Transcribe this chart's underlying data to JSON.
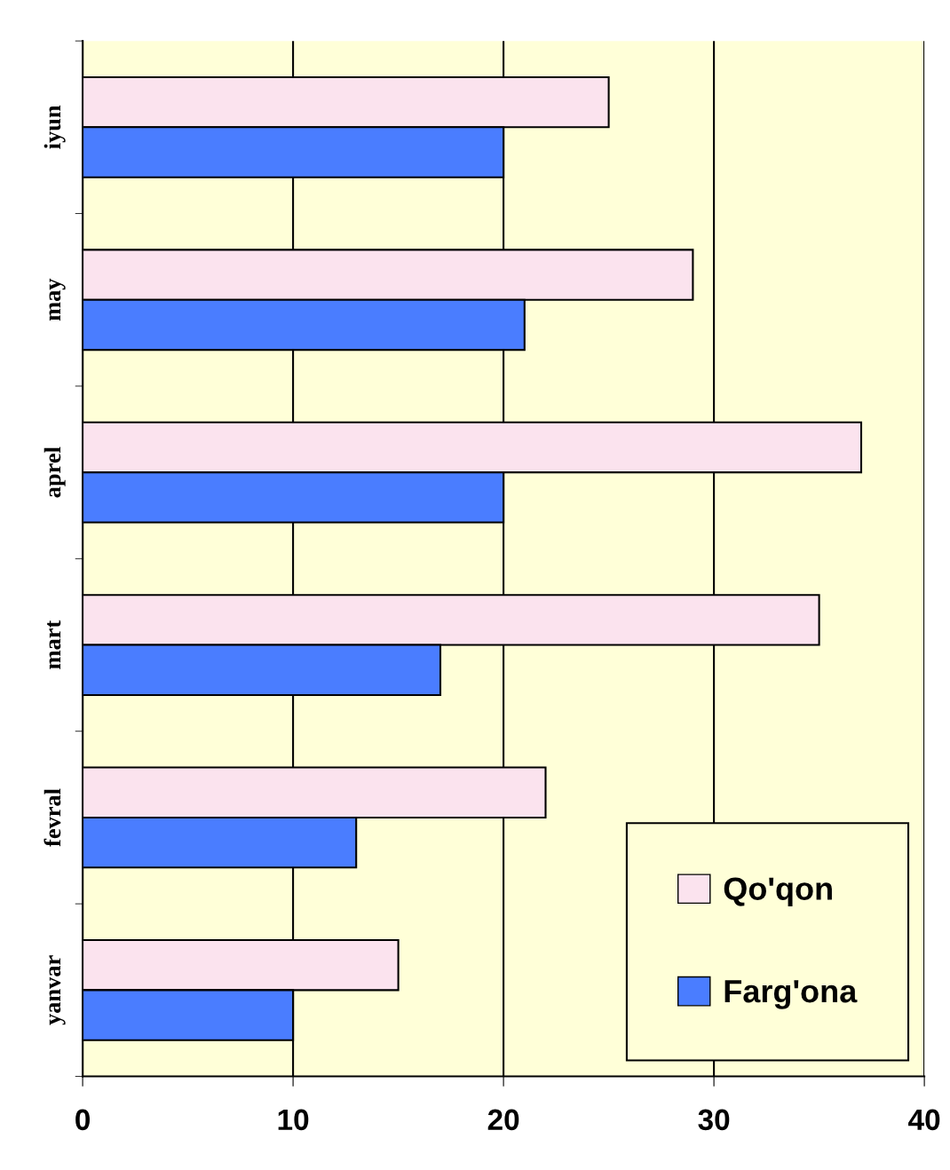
{
  "chart_data": {
    "type": "bar",
    "orientation": "horizontal",
    "categories": [
      "iyun",
      "may",
      "aprel",
      "mart",
      "fevral",
      "yanvar"
    ],
    "series": [
      {
        "name": "Qo'qon",
        "color": "#fbe3ee",
        "values": [
          25,
          29,
          37,
          35,
          22,
          15
        ]
      },
      {
        "name": "Farg'ona",
        "color": "#4a7dff",
        "values": [
          20,
          21,
          20,
          17,
          13,
          10
        ]
      }
    ],
    "xlim": [
      0,
      40
    ],
    "xticks": [
      0,
      10,
      20,
      30,
      40
    ],
    "grid": "x",
    "legend": "bottom right"
  }
}
